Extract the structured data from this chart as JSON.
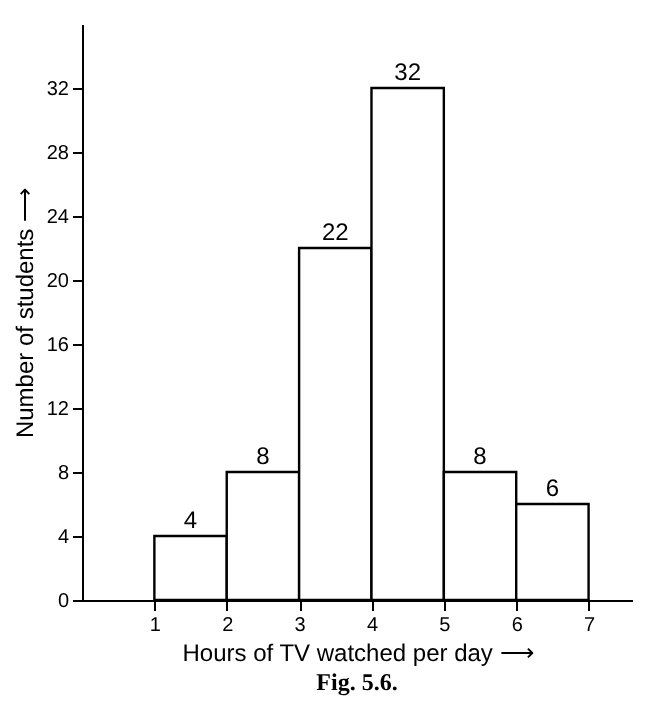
{
  "chart_data": {
    "type": "histogram",
    "bins": [
      1,
      2,
      3,
      4,
      5,
      6,
      7
    ],
    "values": [
      4,
      8,
      22,
      32,
      8,
      6
    ],
    "color": "#ffffff",
    "data_labels": true,
    "xlabel": "Hours of TV watched per day ⟶",
    "ylabel": "Number of students ⟶",
    "xlim": [
      0,
      7.6
    ],
    "xticks": [
      1,
      2,
      3,
      4,
      5,
      6,
      7
    ],
    "ylim": [
      0,
      36
    ],
    "yticks": [
      0,
      4,
      8,
      12,
      16,
      20,
      24,
      28,
      32
    ],
    "grid": false,
    "annotations": [
      "Fig. 5.6."
    ]
  }
}
